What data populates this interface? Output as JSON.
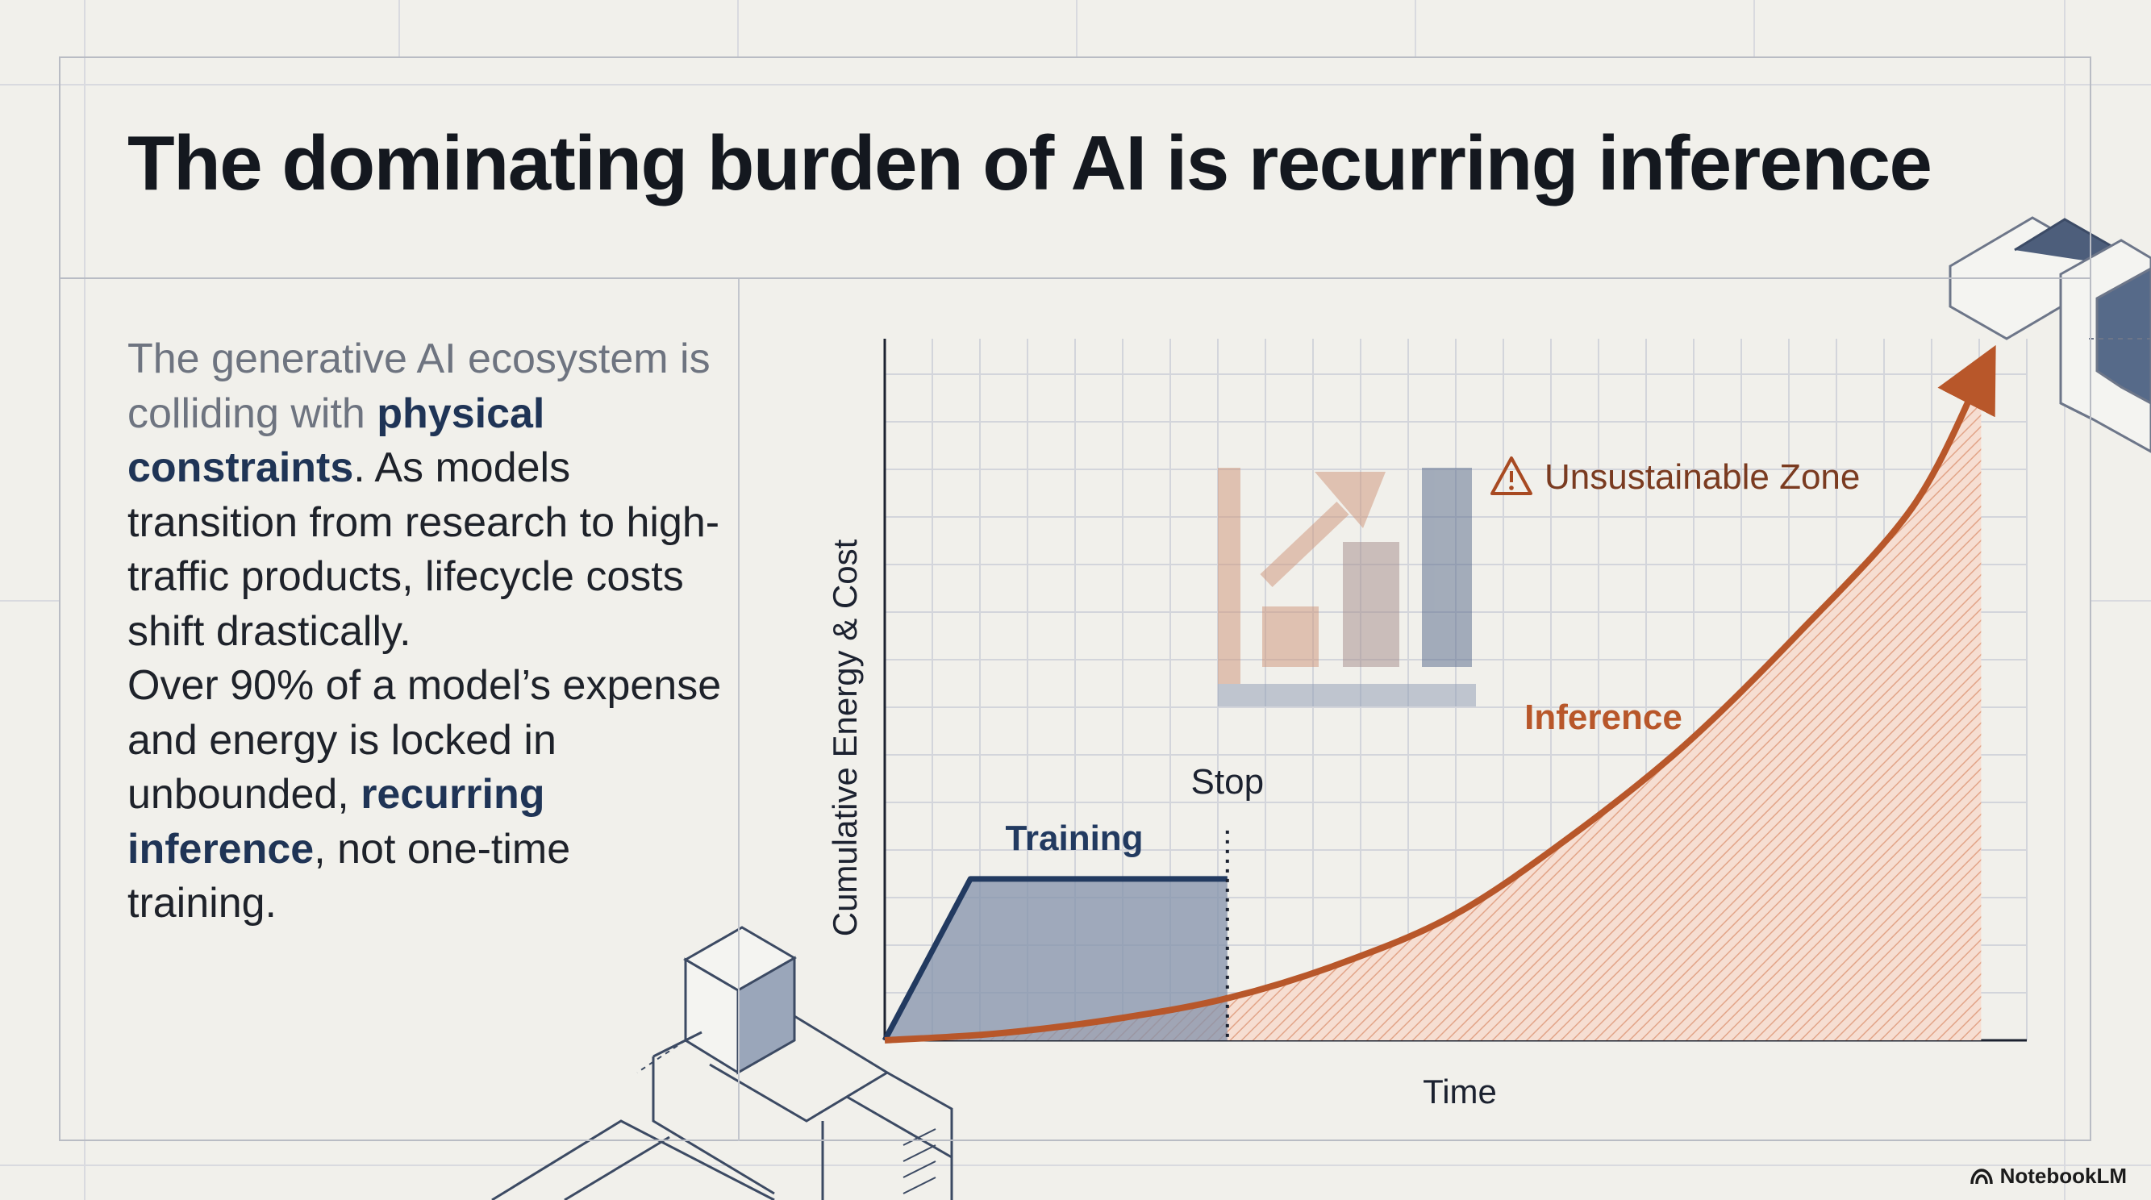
{
  "slide": {
    "title": "The dominating burden of AI is recurring inference"
  },
  "body": {
    "muted_intro": "The generative AI ecosystem is colliding with",
    "highlight_1": "physical constraints",
    "text_1": ". As models transition from research to high-traffic products, lifecycle costs shift drastically.",
    "text_2": "Over 90% of a model’s expense and energy is locked in unbounded,",
    "highlight_2": "recurring inference",
    "text_3": ", not one-time training."
  },
  "chart_data": {
    "type": "line",
    "xlabel": "Time",
    "ylabel": "Cumulative Energy & Cost",
    "xlim": [
      0,
      100
    ],
    "ylim": [
      0,
      100
    ],
    "grid": true,
    "series": [
      {
        "name": "Training",
        "color": "#223a60",
        "x": [
          0,
          7.5,
          30,
          30
        ],
        "y": [
          0,
          23,
          23,
          0
        ]
      },
      {
        "name": "Inference",
        "color": "#b8572a",
        "x": [
          0,
          10,
          20,
          30,
          40,
          50,
          60,
          70,
          80,
          90,
          96
        ],
        "y": [
          0,
          1,
          3,
          6,
          11,
          18,
          29,
          42,
          58,
          76,
          95
        ]
      }
    ],
    "annotations": [
      {
        "text": "Stop",
        "x": 30
      },
      {
        "text": "Unsustainable Zone",
        "icon": "warning-icon"
      }
    ]
  },
  "brand": {
    "label": "NotebookLM",
    "icon": "notebooklm-logo-icon"
  }
}
